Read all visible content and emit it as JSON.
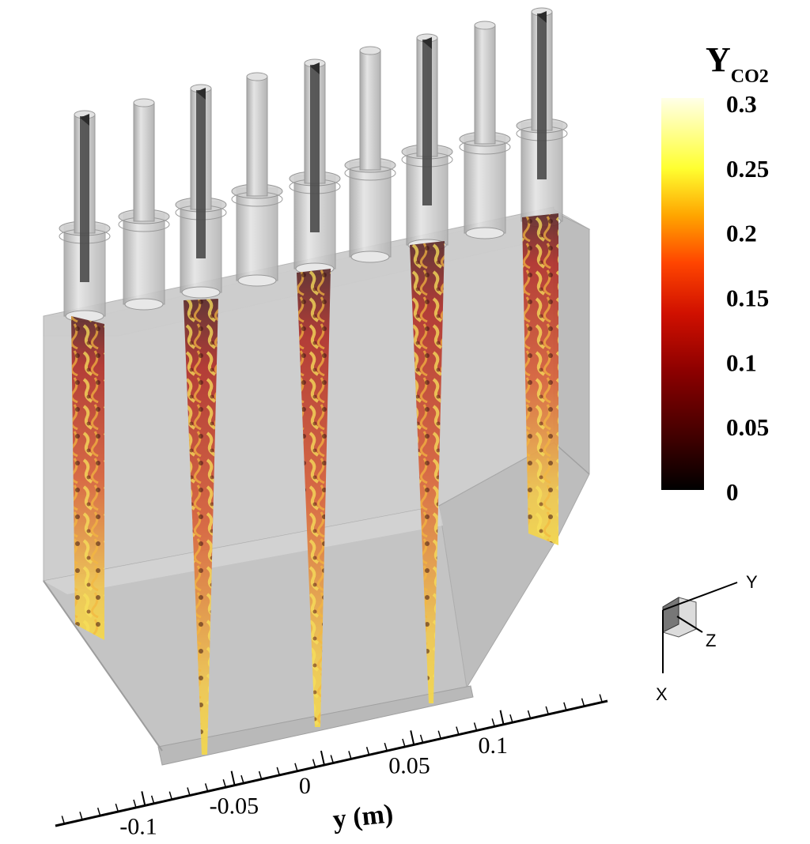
{
  "colorbar": {
    "title_main": "Y",
    "title_sub": "CO2",
    "ticks": [
      "0.3",
      "0.25",
      "0.2",
      "0.15",
      "0.1",
      "0.05",
      "0"
    ],
    "tick_values": [
      0.3,
      0.25,
      0.2,
      0.15,
      0.1,
      0.05,
      0
    ],
    "range": [
      0,
      0.3
    ],
    "colormap": [
      "#000000",
      "#3a0000",
      "#8b0000",
      "#d01000",
      "#ff4500",
      "#ffa500",
      "#ffff30",
      "#ffffe8"
    ]
  },
  "axis": {
    "title": "y (m)",
    "ticks": [
      "-0.1",
      "-0.05",
      "0",
      "0.05",
      "0.1"
    ],
    "tick_values": [
      -0.1,
      -0.05,
      0,
      0.05,
      0.1
    ]
  },
  "triad": {
    "x_label": "X",
    "y_label": "Y",
    "z_label": "Z"
  },
  "colors": {
    "chamber_front": "#c8c8c8",
    "chamber_top": "#d8d8d8",
    "tube": "#c0c0c0",
    "tube_dark": "#4a4a4a",
    "flame_base": "#b0302a",
    "flame_hot": "#f5d84a"
  }
}
